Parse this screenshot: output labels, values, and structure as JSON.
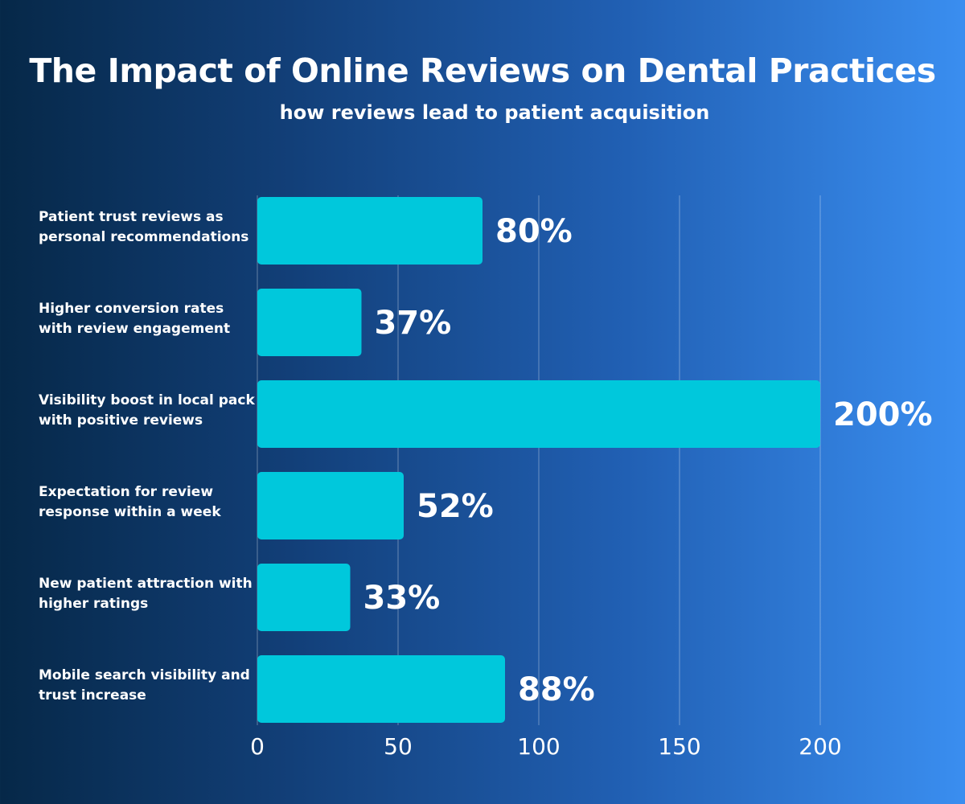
{
  "chart_data": {
    "type": "bar",
    "orientation": "horizontal",
    "title": "The Impact of Online Reviews on Dental Practices",
    "subtitle": "how reviews lead to patient acquisition",
    "categories": [
      "Patient trust reviews as personal recommendations",
      "Higher conversion rates with review engagement",
      "Visibility boost in local pack with positive reviews",
      "Expectation for review response within a week",
      "New patient attraction with higher ratings",
      "Mobile search visibility and trust increase"
    ],
    "values": [
      80,
      37,
      200,
      52,
      33,
      88
    ],
    "data_labels": [
      "80%",
      "37%",
      "200%",
      "52%",
      "33%",
      "88%"
    ],
    "xlim": [
      0,
      200
    ],
    "xticks": [
      "0",
      "50",
      "100",
      "150",
      "200"
    ],
    "grid": true,
    "bar_color": "#00c8dc"
  }
}
